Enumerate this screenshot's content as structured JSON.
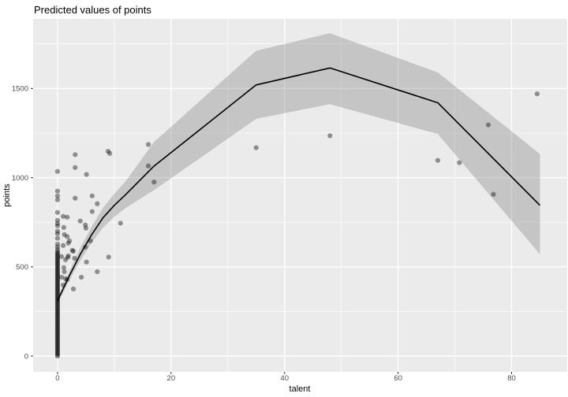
{
  "chart_data": {
    "type": "scatter",
    "title": "Predicted values of points",
    "xlabel": "talent",
    "ylabel": "points",
    "x_ticks": [
      0,
      20,
      40,
      60,
      80
    ],
    "y_ticks": [
      0,
      500,
      1000,
      1500
    ],
    "x_minor_ticks": [
      10,
      30,
      50,
      70
    ],
    "y_minor_ticks": [
      250,
      750,
      1250,
      1750
    ],
    "xlim": [
      -4.3,
      89.8
    ],
    "ylim": [
      -88,
      1890
    ],
    "grid": "major-and-minor white on gray panel",
    "legend_position": "none",
    "colors": {
      "panel_bg": "#EBEBEB",
      "grid": "#FFFFFF",
      "line": "#000000",
      "point": "#000000",
      "ribbon": "#777777",
      "tick_label": "#4D4D4D",
      "tick_mark": "#333333"
    },
    "point_alpha": 0.4,
    "ribbon_alpha": 0.32,
    "smooth_line": {
      "x": [
        0,
        2,
        4,
        6,
        8,
        10,
        12,
        17,
        35,
        48,
        67,
        85
      ],
      "y": [
        310,
        445,
        570,
        680,
        775,
        845,
        905,
        1065,
        1520,
        1615,
        1420,
        845
      ]
    },
    "ribbon": {
      "x": [
        0,
        2,
        4,
        6,
        8,
        10,
        12,
        17,
        35,
        48,
        67,
        85
      ],
      "lower": [
        293,
        420,
        535,
        635,
        720,
        780,
        830,
        930,
        1330,
        1412,
        1245,
        571
      ],
      "upper": [
        327,
        470,
        605,
        725,
        830,
        910,
        980,
        1200,
        1712,
        1810,
        1590,
        1133
      ]
    },
    "points": [
      [
        3.1,
        1129
      ],
      [
        8.9,
        1148
      ],
      [
        9.2,
        1136
      ],
      [
        3.1,
        1057
      ],
      [
        5.1,
        1018
      ],
      [
        6.1,
        898
      ],
      [
        3.1,
        885
      ],
      [
        7.0,
        854
      ],
      [
        6.1,
        810
      ],
      [
        1.0,
        783
      ],
      [
        1.7,
        779
      ],
      [
        4.0,
        757
      ],
      [
        11.1,
        745
      ],
      [
        4.9,
        735
      ],
      [
        1.1,
        721
      ],
      [
        5.0,
        717
      ],
      [
        1.2,
        681
      ],
      [
        1.7,
        670
      ],
      [
        2.1,
        646
      ],
      [
        5.8,
        646
      ],
      [
        1.9,
        633
      ],
      [
        1.0,
        620
      ],
      [
        4.9,
        611
      ],
      [
        2.6,
        593
      ],
      [
        2.8,
        588
      ],
      [
        1.9,
        562
      ],
      [
        0.7,
        558
      ],
      [
        1.8,
        553
      ],
      [
        9.0,
        555
      ],
      [
        3.0,
        548
      ],
      [
        1.4,
        540
      ],
      [
        5.1,
        527
      ],
      [
        1.1,
        496
      ],
      [
        1.2,
        473
      ],
      [
        7.0,
        473
      ],
      [
        0.7,
        442
      ],
      [
        4.2,
        442
      ],
      [
        1.4,
        434
      ],
      [
        1.7,
        429
      ],
      [
        1.0,
        398
      ],
      [
        2.8,
        376
      ],
      [
        16.0,
        1186
      ],
      [
        16.0,
        1066
      ],
      [
        17.0,
        975
      ],
      [
        35.0,
        1168
      ],
      [
        48.0,
        1235
      ],
      [
        67.0,
        1097
      ],
      [
        70.8,
        1084
      ],
      [
        75.9,
        1296
      ],
      [
        76.8,
        907
      ],
      [
        84.5,
        1470
      ]
    ],
    "zero_talent_column": {
      "talent": 0,
      "extra_values": [
        1035,
        925,
        898,
        876,
        805,
        761,
        743,
        730,
        700,
        686,
        660,
        628,
        612,
        598
      ],
      "dense_min": 0,
      "dense_max": 585,
      "dense_step": 7.5
    }
  }
}
